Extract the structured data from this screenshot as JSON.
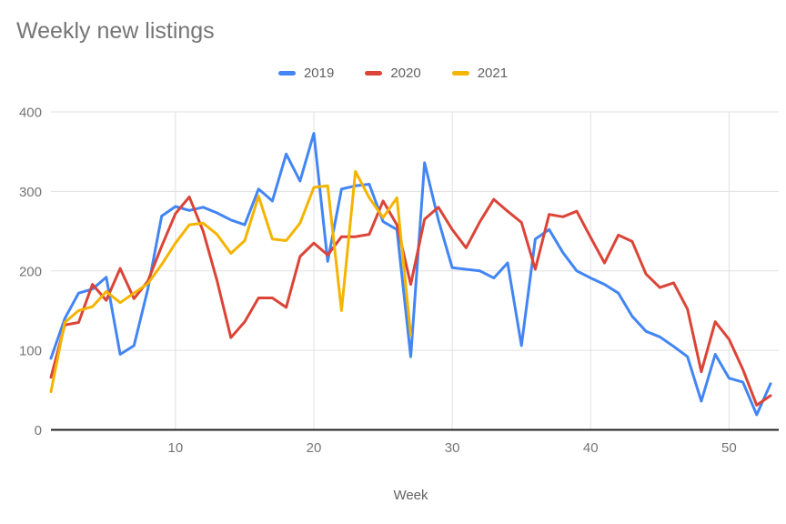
{
  "title": "Weekly new listings",
  "x_axis_title": "Week",
  "colors": {
    "background": "#ffffff",
    "title_text": "#757575",
    "axis_text": "#757575",
    "legend_text": "#616161",
    "gridline": "#e0e0e0",
    "zero_axis": "#212121",
    "series_2019": "#4285f4",
    "series_2020": "#db4437",
    "series_2021": "#f4b400"
  },
  "chart_data": {
    "type": "line",
    "title": "Weekly new listings",
    "xlabel": "Week",
    "ylabel": "",
    "xlim": [
      1,
      53
    ],
    "ylim": [
      0,
      400
    ],
    "x_ticks": [
      10,
      20,
      30,
      40,
      50
    ],
    "y_ticks": [
      0,
      100,
      200,
      300,
      400
    ],
    "grid": true,
    "legend_position": "top",
    "x": [
      1,
      2,
      3,
      4,
      5,
      6,
      7,
      8,
      9,
      10,
      11,
      12,
      13,
      14,
      15,
      16,
      17,
      18,
      19,
      20,
      21,
      22,
      23,
      24,
      25,
      26,
      27,
      28,
      29,
      30,
      31,
      32,
      33,
      34,
      35,
      36,
      37,
      38,
      39,
      40,
      41,
      42,
      43,
      44,
      45,
      46,
      47,
      48,
      49,
      50,
      51,
      52,
      53
    ],
    "series": [
      {
        "name": "2019",
        "color": "#4285f4",
        "values": [
          90,
          140,
          172,
          177,
          192,
          95,
          106,
          177,
          269,
          281,
          276,
          280,
          273,
          264,
          258,
          303,
          288,
          347,
          313,
          373,
          212,
          303,
          307,
          309,
          262,
          252,
          92,
          336,
          264,
          204,
          202,
          200,
          191,
          210,
          106,
          240,
          252,
          223,
          200,
          191,
          183,
          172,
          143,
          124,
          117,
          105,
          92,
          36,
          95,
          65,
          60,
          19,
          58
        ]
      },
      {
        "name": "2020",
        "color": "#db4437",
        "values": [
          66,
          132,
          135,
          183,
          163,
          203,
          165,
          187,
          231,
          272,
          293,
          250,
          188,
          116,
          136,
          166,
          166,
          154,
          218,
          235,
          220,
          243,
          243,
          246,
          288,
          258,
          183,
          265,
          280,
          252,
          229,
          262,
          290,
          275,
          261,
          202,
          271,
          268,
          275,
          242,
          210,
          245,
          237,
          196,
          179,
          185,
          152,
          73,
          136,
          114,
          76,
          31,
          43
        ]
      },
      {
        "name": "2021",
        "color": "#f4b400",
        "values": [
          48,
          135,
          150,
          155,
          174,
          160,
          172,
          184,
          208,
          235,
          258,
          260,
          246,
          222,
          238,
          294,
          240,
          238,
          260,
          305,
          307,
          150,
          325,
          292,
          267,
          292,
          119
        ]
      }
    ]
  }
}
